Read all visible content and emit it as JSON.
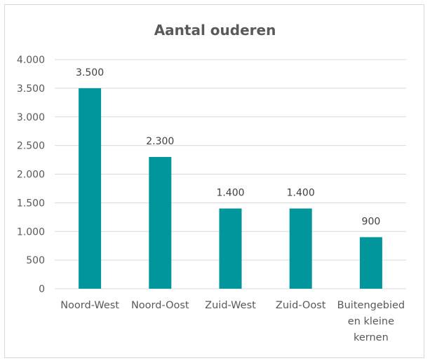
{
  "chart_data": {
    "type": "bar",
    "title": "Aantal ouderen",
    "xlabel": "",
    "ylabel": "",
    "categories": [
      [
        "Noord-West"
      ],
      [
        "Noord-Oost"
      ],
      [
        "Zuid-West"
      ],
      [
        "Zuid-Oost"
      ],
      [
        "Buitengebied",
        "en kleine",
        "kernen"
      ]
    ],
    "values": [
      3500,
      2300,
      1400,
      1400,
      900
    ],
    "value_labels": [
      "3.500",
      "2.300",
      "1.400",
      "1.400",
      "900"
    ],
    "ylim": [
      0,
      4000
    ],
    "yticks": [
      0,
      500,
      1000,
      1500,
      2000,
      2500,
      3000,
      3500,
      4000
    ],
    "ytick_labels": [
      "0",
      "500",
      "1.000",
      "1.500",
      "2.000",
      "2.500",
      "3.000",
      "3.500",
      "4.000"
    ],
    "grid": true,
    "legend": "none",
    "bar_color": "#00969B",
    "grid_color": "#d9d9d9"
  }
}
